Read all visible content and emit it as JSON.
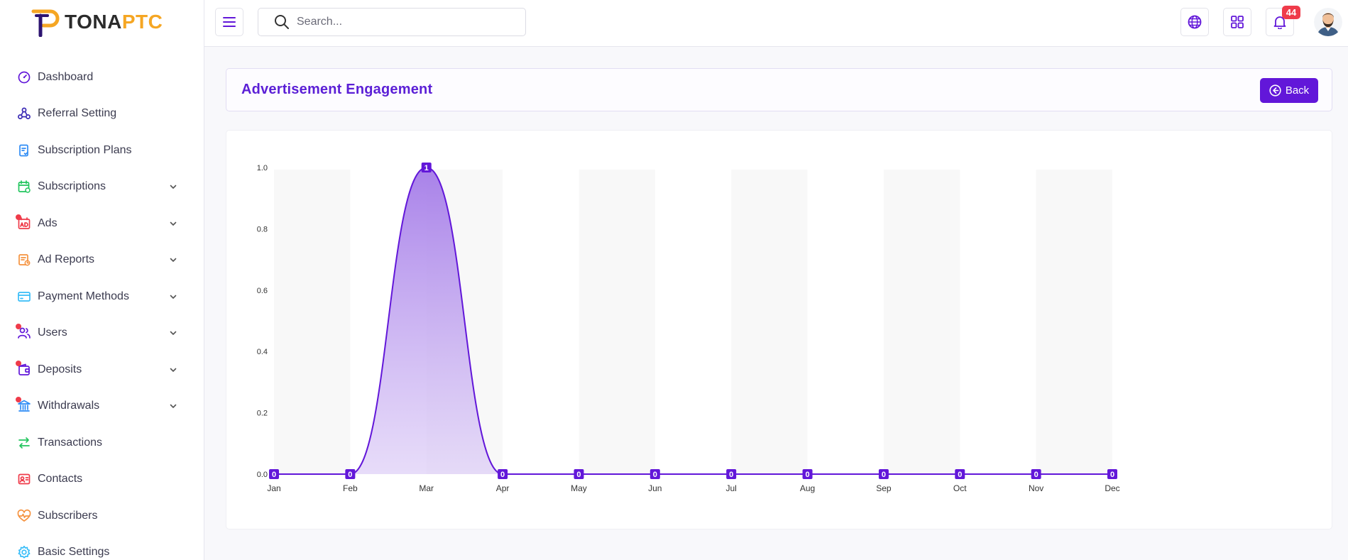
{
  "brand": {
    "part1": "TONA",
    "part2": "PTC"
  },
  "sidebar": {
    "items": [
      {
        "label": "Dashboard",
        "icon": "dashboard-icon",
        "color": "#6217d9",
        "chevron": false,
        "dot": false
      },
      {
        "label": "Referral Setting",
        "icon": "referral-icon",
        "color": "#3b2bb5",
        "chevron": false,
        "dot": false
      },
      {
        "label": "Subscription Plans",
        "icon": "plans-icon",
        "color": "#2f8cf5",
        "chevron": false,
        "dot": false
      },
      {
        "label": "Subscriptions",
        "icon": "calendar-icon",
        "color": "#22c55e",
        "chevron": true,
        "dot": false
      },
      {
        "label": "Ads",
        "icon": "ad-icon",
        "color": "#ef3b4a",
        "chevron": true,
        "dot": true
      },
      {
        "label": "Ad Reports",
        "icon": "report-icon",
        "color": "#f5923e",
        "chevron": true,
        "dot": false
      },
      {
        "label": "Payment Methods",
        "icon": "card-icon",
        "color": "#38bdf8",
        "chevron": true,
        "dot": false
      },
      {
        "label": "Users",
        "icon": "users-icon",
        "color": "#6217d9",
        "chevron": true,
        "dot": true
      },
      {
        "label": "Deposits",
        "icon": "wallet-icon",
        "color": "#6217d9",
        "chevron": true,
        "dot": true
      },
      {
        "label": "Withdrawals",
        "icon": "bank-icon",
        "color": "#2f8cf5",
        "chevron": true,
        "dot": true
      },
      {
        "label": "Transactions",
        "icon": "transfer-icon",
        "color": "#22c55e",
        "chevron": false,
        "dot": false
      },
      {
        "label": "Contacts",
        "icon": "contact-icon",
        "color": "#ef3b4a",
        "chevron": false,
        "dot": false
      },
      {
        "label": "Subscribers",
        "icon": "heart-pulse-icon",
        "color": "#f5923e",
        "chevron": false,
        "dot": false
      },
      {
        "label": "Basic Settings",
        "icon": "gear-icon",
        "color": "#38bdf8",
        "chevron": false,
        "dot": false
      }
    ]
  },
  "header": {
    "search_placeholder": "Search...",
    "notification_count": "44"
  },
  "page": {
    "title": "Advertisement Engagement",
    "back_label": "Back"
  },
  "colors": {
    "accent": "#6217d9",
    "danger": "#ef3b4a",
    "brand_orange": "#f5a623"
  },
  "chart_data": {
    "type": "area",
    "categories": [
      "Jan",
      "Feb",
      "Mar",
      "Apr",
      "May",
      "Jun",
      "Jul",
      "Aug",
      "Sep",
      "Oct",
      "Nov",
      "Dec"
    ],
    "series": [
      {
        "values": [
          0,
          0,
          1,
          0,
          0,
          0,
          0,
          0,
          0,
          0,
          0,
          0
        ]
      }
    ],
    "ylim": [
      0,
      1
    ],
    "yticks": [
      "0.0",
      "0.2",
      "0.4",
      "0.6",
      "0.8",
      "1.0"
    ],
    "data_labels": true,
    "grid": "alternating-column-bands",
    "legend": "none",
    "color": "#6217d9"
  }
}
